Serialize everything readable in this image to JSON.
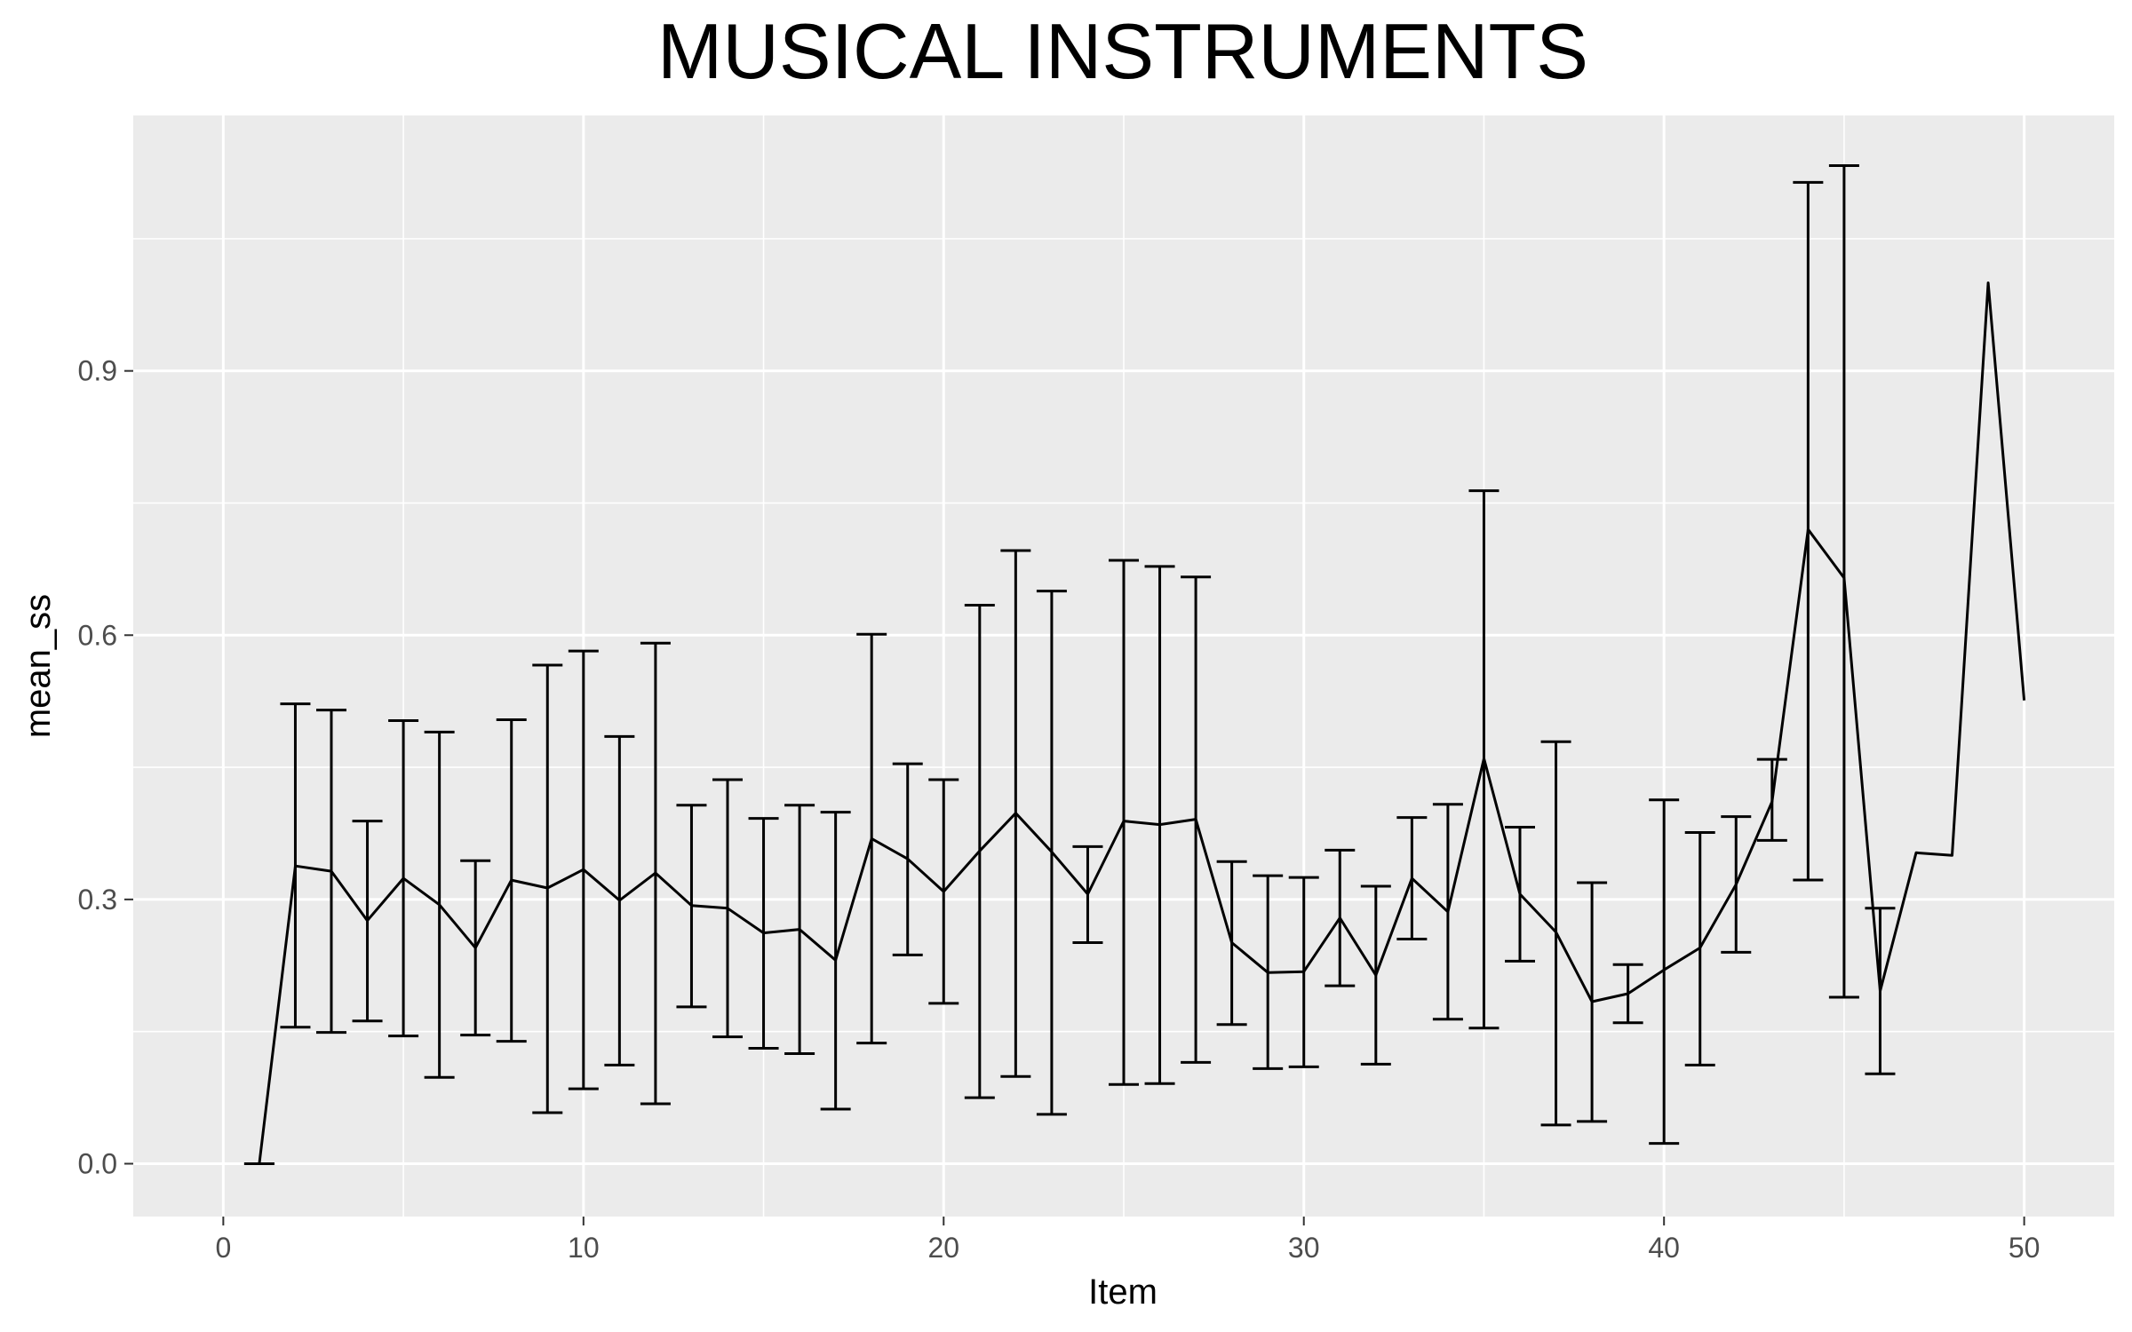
{
  "chart_data": {
    "type": "line",
    "title": "MUSICAL INSTRUMENTS",
    "xlabel": "Item",
    "ylabel": "mean_ss",
    "xlim": [
      -2.5,
      52.5
    ],
    "ylim": [
      -0.06,
      1.19
    ],
    "x_ticks": [
      0,
      10,
      20,
      30,
      40,
      50
    ],
    "x_tick_labels": [
      "0",
      "10",
      "20",
      "30",
      "40",
      "50"
    ],
    "x_minor_ticks": [
      5,
      15,
      25,
      35,
      45
    ],
    "y_ticks": [
      0.0,
      0.3,
      0.6,
      0.9
    ],
    "y_tick_labels": [
      "0.0",
      "0.3",
      "0.6",
      "0.9"
    ],
    "y_minor_ticks": [
      0.15,
      0.45,
      0.75,
      1.05
    ],
    "grid": true,
    "legend": "none",
    "colors": {
      "panel_background": "#ebebeb",
      "grid": "#ffffff",
      "line": "#000000"
    },
    "series": [
      {
        "x": [
          1,
          2,
          3,
          4,
          5,
          6,
          7,
          8,
          9,
          10,
          11,
          12,
          13,
          14,
          15,
          16,
          17,
          18,
          19,
          20,
          21,
          22,
          23,
          24,
          25,
          26,
          27,
          28,
          29,
          30,
          31,
          32,
          33,
          34,
          35,
          36,
          37,
          38,
          39,
          40,
          41,
          42,
          43,
          44,
          45,
          46,
          47,
          48,
          49,
          50
        ],
        "y": [
          0.0,
          0.338,
          0.332,
          0.276,
          0.324,
          0.294,
          0.245,
          0.322,
          0.313,
          0.334,
          0.299,
          0.33,
          0.293,
          0.29,
          0.262,
          0.266,
          0.231,
          0.369,
          0.346,
          0.309,
          0.355,
          0.398,
          0.354,
          0.306,
          0.389,
          0.385,
          0.391,
          0.251,
          0.217,
          0.218,
          0.279,
          0.214,
          0.324,
          0.286,
          0.46,
          0.306,
          0.263,
          0.184,
          0.193,
          0.22,
          0.245,
          0.317,
          0.411,
          0.72,
          0.665,
          0.196,
          0.353,
          0.35,
          1.0,
          0.526
        ],
        "ymin": [
          0.0,
          0.155,
          0.149,
          0.162,
          0.145,
          0.098,
          0.146,
          0.139,
          0.058,
          0.085,
          0.112,
          0.068,
          0.178,
          0.144,
          0.131,
          0.125,
          0.062,
          0.137,
          0.237,
          0.182,
          0.075,
          0.099,
          0.056,
          0.251,
          0.09,
          0.091,
          0.115,
          0.158,
          0.108,
          0.11,
          0.202,
          0.113,
          0.255,
          0.164,
          0.154,
          0.23,
          0.044,
          0.048,
          0.16,
          0.023,
          0.112,
          0.24,
          0.367,
          0.322,
          0.189,
          0.102,
          null,
          null,
          null,
          null
        ],
        "ymax": [
          0.0,
          0.522,
          0.515,
          0.389,
          0.503,
          0.49,
          0.344,
          0.504,
          0.566,
          0.582,
          0.485,
          0.591,
          0.407,
          0.436,
          0.392,
          0.407,
          0.399,
          0.601,
          0.454,
          0.436,
          0.634,
          0.696,
          0.65,
          0.36,
          0.685,
          0.678,
          0.666,
          0.343,
          0.327,
          0.325,
          0.356,
          0.315,
          0.393,
          0.408,
          0.764,
          0.382,
          0.479,
          0.319,
          0.226,
          0.413,
          0.376,
          0.394,
          0.459,
          1.114,
          1.133,
          0.29,
          null,
          null,
          null,
          null
        ]
      }
    ]
  }
}
